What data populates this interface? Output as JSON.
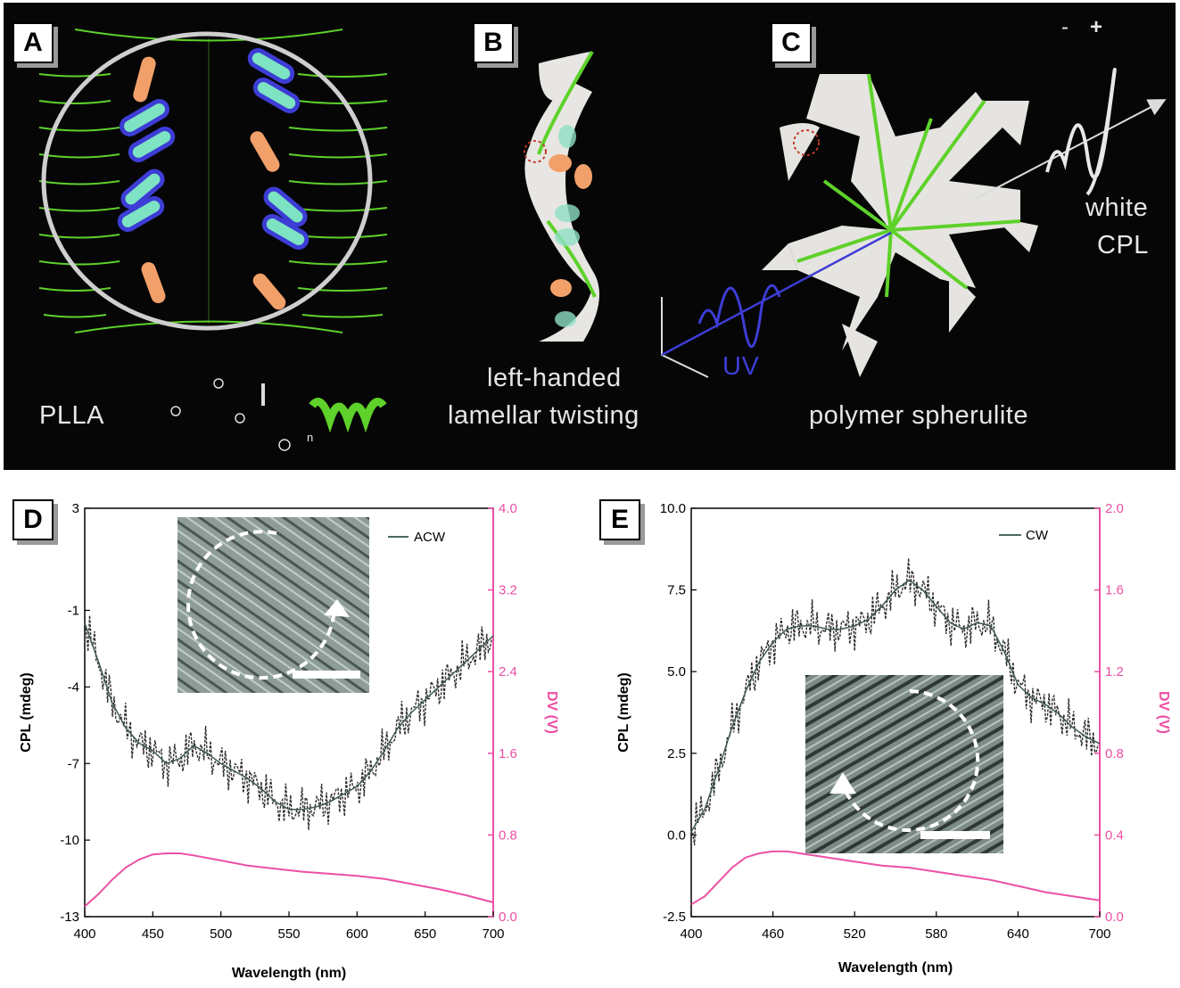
{
  "panels": {
    "A": "A",
    "B": "B",
    "C": "C",
    "D": "D",
    "E": "E"
  },
  "top": {
    "plla_label": "PLLA",
    "formula_n": "n",
    "b_caption_line1": "left-handed",
    "b_caption_line2": "lamellar twisting",
    "c_caption": "polymer spherulite",
    "uv_label": "UV",
    "white_label": "white",
    "cpl_label": "CPL",
    "minus_sign": "-",
    "plus_sign": "+"
  },
  "colors": {
    "background": "#060606",
    "green": "#5ed12a",
    "uv_blue": "#3d3dd6",
    "pink": "#ec4fa4",
    "rod_orange": "#f2a06a",
    "rod_cyan": "#7de3c3"
  },
  "chart_data": [
    {
      "type": "line",
      "panel": "D",
      "legend": "ACW",
      "xlabel": "Wavelength (nm)",
      "ylabel": "CPL (mdeg)",
      "ylabel_right": "DV (V)",
      "xlim": [
        400,
        700
      ],
      "ylim": [
        -13,
        3
      ],
      "ylim_right": [
        0,
        4
      ],
      "x_ticks": [
        "400",
        "450",
        "500",
        "550",
        "600",
        "650",
        "700"
      ],
      "y_ticks": [
        "3",
        "-1",
        "-4",
        "-7",
        "-10",
        "-13"
      ],
      "y_ticks_right": [
        "4.0",
        "3.2",
        "2.4",
        "1.6",
        "0.8",
        "0.0"
      ],
      "cpl_smooth": {
        "x": [
          400,
          410,
          420,
          430,
          440,
          450,
          460,
          470,
          480,
          490,
          500,
          510,
          520,
          530,
          540,
          550,
          560,
          570,
          580,
          590,
          600,
          610,
          620,
          630,
          640,
          650,
          660,
          670,
          680,
          690,
          700
        ],
        "y": [
          -1.5,
          -3.0,
          -4.6,
          -5.6,
          -6.2,
          -6.5,
          -7.0,
          -6.8,
          -6.3,
          -6.6,
          -7.0,
          -7.3,
          -7.6,
          -8.0,
          -8.5,
          -8.8,
          -8.8,
          -8.7,
          -8.5,
          -8.2,
          -7.9,
          -7.3,
          -6.5,
          -5.6,
          -5.0,
          -4.5,
          -4.0,
          -3.5,
          -3.0,
          -2.5,
          -2.0
        ]
      },
      "dv": {
        "x": [
          400,
          410,
          420,
          430,
          440,
          450,
          460,
          470,
          480,
          500,
          520,
          540,
          560,
          580,
          600,
          620,
          640,
          660,
          680,
          700
        ],
        "y": [
          0.1,
          0.22,
          0.36,
          0.48,
          0.56,
          0.61,
          0.62,
          0.62,
          0.6,
          0.55,
          0.5,
          0.47,
          0.44,
          0.42,
          0.4,
          0.37,
          0.32,
          0.27,
          0.21,
          0.14
        ]
      }
    },
    {
      "type": "line",
      "panel": "E",
      "legend": "CW",
      "xlabel": "Wavelength (nm)",
      "ylabel": "CPL (mdeg)",
      "ylabel_right": "DV (V)",
      "xlim": [
        400,
        700
      ],
      "ylim": [
        -2.5,
        10
      ],
      "ylim_right": [
        0,
        2
      ],
      "x_ticks": [
        "400",
        "460",
        "520",
        "580",
        "640",
        "700"
      ],
      "y_ticks": [
        "10.0",
        "7.5",
        "5.0",
        "2.5",
        "0.0",
        "-2.5"
      ],
      "y_ticks_right": [
        "2.0",
        "1.6",
        "1.2",
        "0.8",
        "0.4",
        "0.0"
      ],
      "cpl_smooth": {
        "x": [
          400,
          410,
          420,
          430,
          440,
          450,
          460,
          470,
          480,
          490,
          500,
          510,
          520,
          530,
          540,
          550,
          560,
          570,
          580,
          590,
          600,
          610,
          620,
          630,
          640,
          650,
          660,
          670,
          680,
          690,
          700
        ],
        "y": [
          0.1,
          0.8,
          2.0,
          3.3,
          4.4,
          5.3,
          5.9,
          6.3,
          6.4,
          6.4,
          6.3,
          6.3,
          6.4,
          6.6,
          7.0,
          7.5,
          7.8,
          7.5,
          7.0,
          6.5,
          6.3,
          6.5,
          6.4,
          5.6,
          4.6,
          4.2,
          4.0,
          3.7,
          3.3,
          3.0,
          2.8
        ]
      },
      "dv": {
        "x": [
          400,
          410,
          420,
          430,
          440,
          450,
          460,
          470,
          480,
          500,
          520,
          540,
          560,
          580,
          600,
          620,
          640,
          660,
          680,
          700
        ],
        "y": [
          0.06,
          0.1,
          0.17,
          0.24,
          0.29,
          0.31,
          0.32,
          0.32,
          0.31,
          0.29,
          0.27,
          0.25,
          0.24,
          0.22,
          0.2,
          0.18,
          0.15,
          0.12,
          0.1,
          0.08
        ]
      }
    }
  ]
}
